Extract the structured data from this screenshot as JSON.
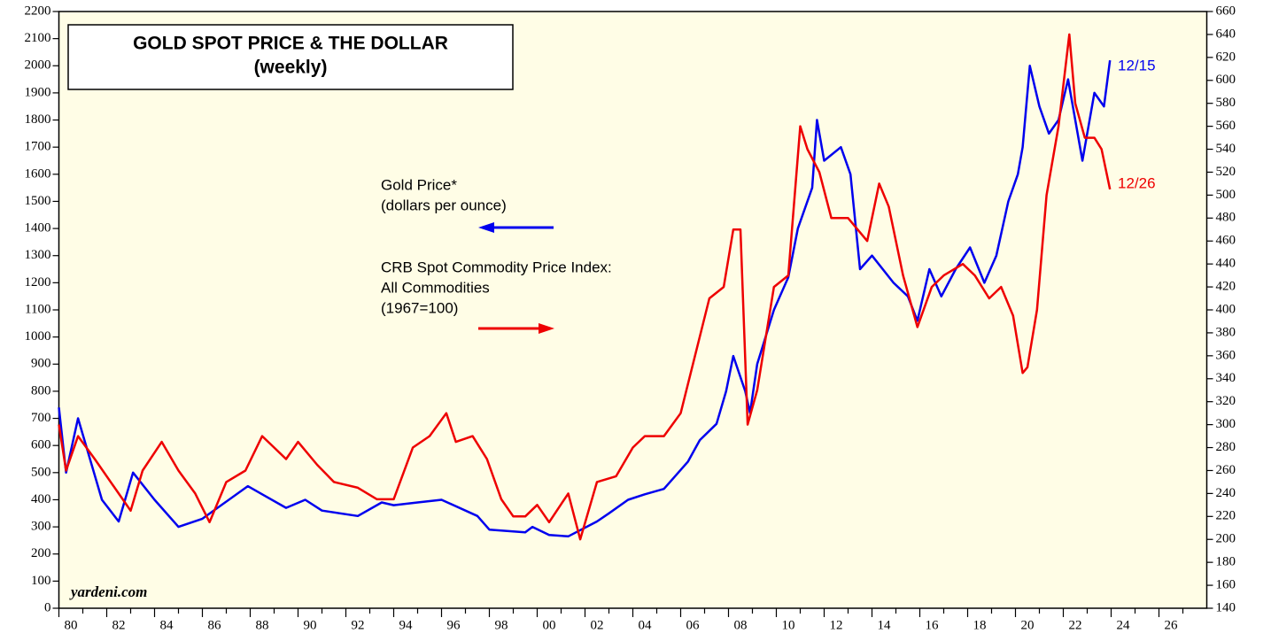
{
  "chart_data": {
    "type": "line",
    "title": "GOLD SPOT PRICE & THE DOLLAR",
    "subtitle": "(weekly)",
    "annotations": {
      "gold_label": "Gold Price*",
      "gold_units": "(dollars per ounce)",
      "crb_label": "CRB Spot Commodity Price Index:",
      "crb_label2": "All Commodities",
      "crb_units": "(1967=100)",
      "gold_end": "12/15",
      "crb_end": "12/26",
      "source": "yardeni.com"
    },
    "xlim": [
      1980,
      2028
    ],
    "xticks": [
      {
        "value": 1980,
        "label": "80"
      },
      {
        "value": 1982,
        "label": "82"
      },
      {
        "value": 1984,
        "label": "84"
      },
      {
        "value": 1986,
        "label": "86"
      },
      {
        "value": 1988,
        "label": "88"
      },
      {
        "value": 1990,
        "label": "90"
      },
      {
        "value": 1992,
        "label": "92"
      },
      {
        "value": 1994,
        "label": "94"
      },
      {
        "value": 1996,
        "label": "96"
      },
      {
        "value": 1998,
        "label": "98"
      },
      {
        "value": 2000,
        "label": "00"
      },
      {
        "value": 2002,
        "label": "02"
      },
      {
        "value": 2004,
        "label": "04"
      },
      {
        "value": 2006,
        "label": "06"
      },
      {
        "value": 2008,
        "label": "08"
      },
      {
        "value": 2010,
        "label": "10"
      },
      {
        "value": 2012,
        "label": "12"
      },
      {
        "value": 2014,
        "label": "14"
      },
      {
        "value": 2016,
        "label": "16"
      },
      {
        "value": 2018,
        "label": "18"
      },
      {
        "value": 2020,
        "label": "20"
      },
      {
        "value": 2022,
        "label": "22"
      },
      {
        "value": 2024,
        "label": "24"
      },
      {
        "value": 2026,
        "label": "26"
      }
    ],
    "ylim": [
      0,
      2200
    ],
    "yticks": [
      0,
      100,
      200,
      300,
      400,
      500,
      600,
      700,
      800,
      900,
      1000,
      1100,
      1200,
      1300,
      1400,
      1500,
      1600,
      1700,
      1800,
      1900,
      2000,
      2100,
      2200
    ],
    "y2lim": [
      140,
      660
    ],
    "y2ticks": [
      140,
      160,
      180,
      200,
      220,
      240,
      260,
      280,
      300,
      320,
      340,
      360,
      380,
      400,
      420,
      440,
      460,
      480,
      500,
      520,
      540,
      560,
      580,
      600,
      620,
      640,
      660
    ],
    "series": [
      {
        "name": "Gold Price*",
        "color": "#0000ee",
        "axis": "y",
        "x": [
          1980.0,
          1980.3,
          1980.8,
          1981.8,
          1982.5,
          1983.1,
          1984.0,
          1985.0,
          1986.0,
          1987.9,
          1988.5,
          1989.5,
          1990.3,
          1991.0,
          1992.5,
          1993.5,
          1994.0,
          1995.0,
          1996.0,
          1997.5,
          1998.0,
          1999.5,
          1999.8,
          2000.5,
          2001.3,
          2002.5,
          2003.0,
          2003.8,
          2004.5,
          2005.3,
          2006.3,
          2006.8,
          2007.5,
          2007.9,
          2008.2,
          2008.7,
          2008.9,
          2009.2,
          2009.9,
          2010.5,
          2010.9,
          2011.5,
          2011.7,
          2012.0,
          2012.7,
          2013.1,
          2013.5,
          2014.0,
          2014.9,
          2015.5,
          2015.9,
          2016.4,
          2016.9,
          2017.5,
          2018.1,
          2018.7,
          2019.2,
          2019.7,
          2020.1,
          2020.3,
          2020.6,
          2021.0,
          2021.4,
          2021.8,
          2022.2,
          2022.8,
          2023.3,
          2023.7,
          2023.95
        ],
        "values": [
          740,
          500,
          700,
          400,
          320,
          500,
          400,
          300,
          330,
          450,
          420,
          370,
          400,
          360,
          340,
          390,
          380,
          390,
          400,
          340,
          290,
          280,
          300,
          270,
          265,
          320,
          350,
          400,
          420,
          440,
          540,
          620,
          680,
          800,
          930,
          800,
          720,
          900,
          1100,
          1220,
          1400,
          1550,
          1800,
          1650,
          1700,
          1600,
          1250,
          1300,
          1200,
          1150,
          1060,
          1250,
          1150,
          1250,
          1330,
          1200,
          1300,
          1500,
          1600,
          1700,
          2000,
          1850,
          1750,
          1800,
          1950,
          1650,
          1900,
          1850,
          2020
        ]
      },
      {
        "name": "CRB Spot Commodity Price Index: All Commodities",
        "color": "#ee0000",
        "axis": "y2",
        "x": [
          1980.0,
          1980.3,
          1980.8,
          1981.5,
          1982.5,
          1983.0,
          1983.5,
          1984.3,
          1985.0,
          1985.7,
          1986.3,
          1987.0,
          1987.8,
          1988.5,
          1989.0,
          1989.5,
          1990.0,
          1990.8,
          1991.5,
          1992.5,
          1993.3,
          1994.0,
          1994.8,
          1995.5,
          1996.2,
          1996.6,
          1997.3,
          1997.9,
          1998.5,
          1999.0,
          1999.5,
          2000.0,
          2000.5,
          2001.3,
          2001.8,
          2002.5,
          2003.3,
          2004.0,
          2004.5,
          2005.3,
          2006.0,
          2006.6,
          2007.2,
          2007.8,
          2008.2,
          2008.5,
          2008.8,
          2009.2,
          2009.9,
          2010.5,
          2011.0,
          2011.3,
          2011.8,
          2012.3,
          2013.0,
          2013.8,
          2014.3,
          2014.7,
          2015.3,
          2015.9,
          2016.5,
          2017.0,
          2017.8,
          2018.3,
          2018.9,
          2019.4,
          2019.9,
          2020.3,
          2020.5,
          2020.9,
          2021.3,
          2021.8,
          2022.25,
          2022.5,
          2022.9,
          2023.3,
          2023.6,
          2023.95
        ],
        "values": [
          300,
          260,
          290,
          270,
          240,
          225,
          260,
          285,
          260,
          240,
          215,
          250,
          260,
          290,
          280,
          270,
          285,
          265,
          250,
          245,
          235,
          235,
          280,
          290,
          310,
          285,
          290,
          270,
          235,
          220,
          220,
          230,
          215,
          240,
          200,
          250,
          255,
          280,
          290,
          290,
          310,
          360,
          410,
          420,
          470,
          470,
          300,
          330,
          420,
          430,
          560,
          540,
          520,
          480,
          480,
          460,
          510,
          490,
          430,
          385,
          420,
          430,
          440,
          430,
          410,
          420,
          395,
          345,
          350,
          400,
          500,
          560,
          640,
          580,
          550,
          550,
          540,
          505
        ]
      }
    ]
  }
}
